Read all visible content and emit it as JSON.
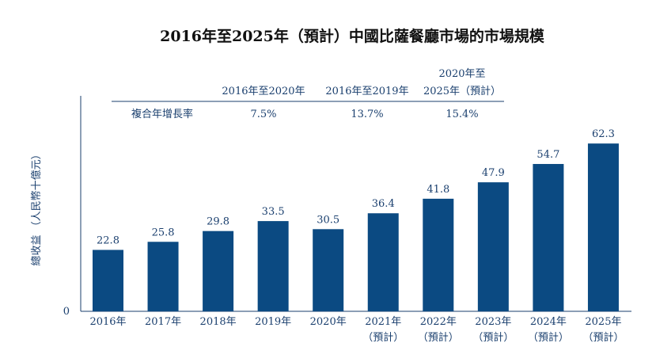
{
  "chart_data": {
    "type": "bar",
    "title": "2016年至2025年（預計）中國比薩餐廳市場的市場規模",
    "ylabel": "總收益 （人民幣十億元）",
    "y_tick_zero": "0",
    "categories": [
      [
        "2016年"
      ],
      [
        "2017年"
      ],
      [
        "2018年"
      ],
      [
        "2019年"
      ],
      [
        "2020年"
      ],
      [
        "2021年",
        "（預計）"
      ],
      [
        "2022年",
        "（預計）"
      ],
      [
        "2023年",
        "（預計）"
      ],
      [
        "2024年",
        "（預計）"
      ],
      [
        "2025年",
        "（預計）"
      ]
    ],
    "values": [
      22.8,
      25.8,
      29.8,
      33.5,
      30.5,
      36.4,
      41.8,
      47.9,
      54.7,
      62.3
    ],
    "value_labels": [
      "22.8",
      "25.8",
      "29.8",
      "33.5",
      "30.5",
      "36.4",
      "41.8",
      "47.9",
      "54.7",
      "62.3"
    ],
    "ylim": [
      0,
      80
    ],
    "bar_color": "#0b4a82",
    "text_color": "#1a3f6e",
    "grid": false,
    "cagr_table": {
      "row_label": "複合年增長率",
      "columns": [
        {
          "header": [
            "2016年至2020年"
          ],
          "value": "7.5%"
        },
        {
          "header": [
            "2016年至2019年"
          ],
          "value": "13.7%"
        },
        {
          "header": [
            "2020年至",
            "2025年（預計）"
          ],
          "value": "15.4%"
        }
      ]
    }
  }
}
